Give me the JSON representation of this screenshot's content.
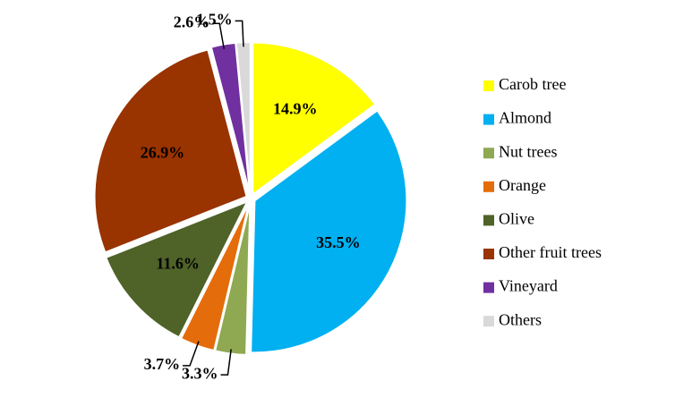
{
  "chart_data": {
    "type": "pie",
    "categories": [
      "Carob tree",
      "Almond",
      "Nut trees",
      "Orange",
      "Olive",
      "Other fruit trees",
      "Vineyard",
      "Others"
    ],
    "values": [
      14.9,
      35.5,
      3.3,
      3.7,
      11.6,
      26.9,
      2.6,
      1.5
    ],
    "value_labels": [
      "14.9%",
      "35.5%",
      "3.3%",
      "3.7%",
      "11.6%",
      "26.9%",
      "2.6%",
      "1,5%"
    ],
    "colors": [
      "#ffff00",
      "#00b0f0",
      "#8fa852",
      "#e46c0a",
      "#4f6228",
      "#993300",
      "#7030a0",
      "#d9d9d9"
    ],
    "legend": "right"
  }
}
